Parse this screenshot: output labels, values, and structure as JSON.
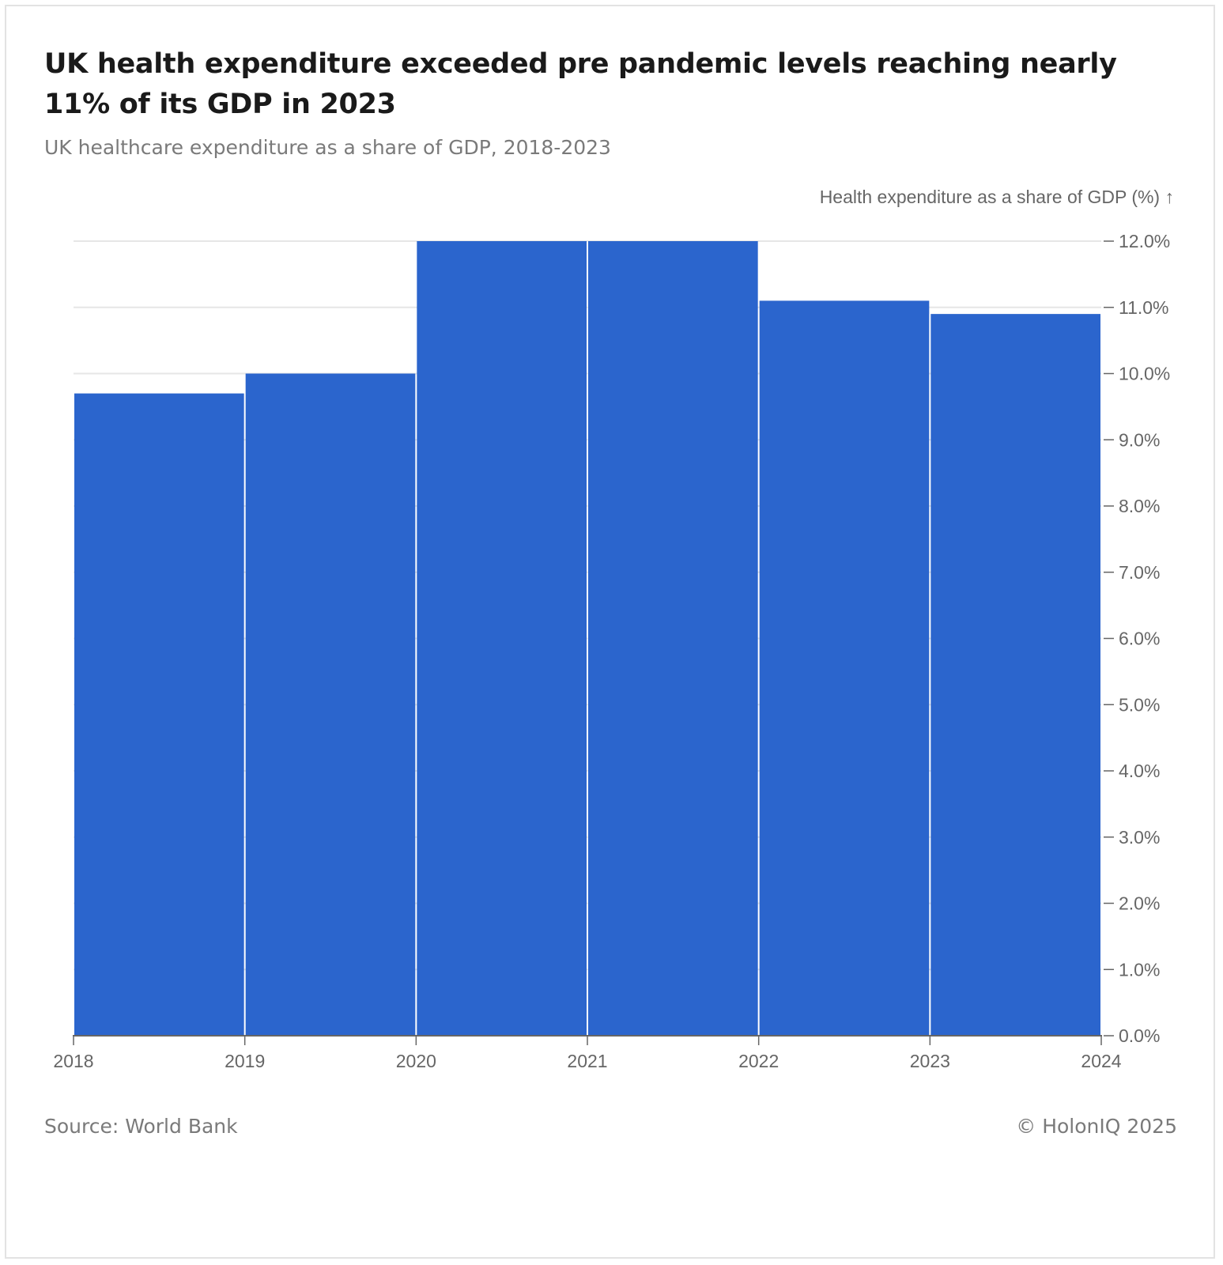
{
  "title": "UK health expenditure exceeded pre pandemic levels reaching nearly 11% of its GDP in 2023",
  "subtitle": "UK healthcare expenditure as a share of GDP, 2018-2023",
  "source": "Source: World Bank",
  "credit": "© HolonIQ 2025",
  "colors": {
    "bar": "#2B65CD",
    "grid": "#e6e6e6",
    "axis": "#666666"
  },
  "chart_data": {
    "type": "bar",
    "title": "UK health expenditure exceeded pre pandemic levels reaching nearly 11% of its GDP in 2023",
    "subtitle": "UK healthcare expenditure as a share of GDP, 2018-2023",
    "ylabel": "Health expenditure as a share of GDP (%) ↑",
    "xlabel": "",
    "x_ticks": [
      "2018",
      "2019",
      "2020",
      "2021",
      "2022",
      "2023",
      "2024"
    ],
    "bars": [
      {
        "x0": 2018,
        "x1": 2019,
        "value": 9.7
      },
      {
        "x0": 2019,
        "x1": 2020,
        "value": 10.0
      },
      {
        "x0": 2020,
        "x1": 2021,
        "value": 12.0
      },
      {
        "x0": 2021,
        "x1": 2022,
        "value": 12.0
      },
      {
        "x0": 2022,
        "x1": 2023,
        "value": 11.1
      },
      {
        "x0": 2023,
        "x1": 2024,
        "value": 10.9
      }
    ],
    "xlim": [
      2018,
      2024
    ],
    "ylim": [
      0,
      12
    ],
    "y_ticks": [
      "0.0%",
      "1.0%",
      "2.0%",
      "3.0%",
      "4.0%",
      "5.0%",
      "6.0%",
      "7.0%",
      "8.0%",
      "9.0%",
      "10.0%",
      "11.0%",
      "12.0%"
    ],
    "y_axis_position": "right",
    "grid": true
  }
}
